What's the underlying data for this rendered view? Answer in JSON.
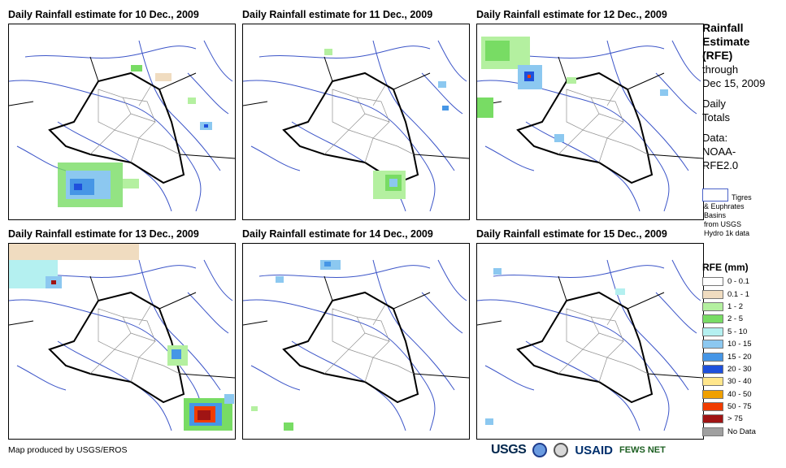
{
  "panels": [
    {
      "title": "Daily Rainfall estimate for 10 Dec., 2009"
    },
    {
      "title": "Daily Rainfall estimate for 11 Dec., 2009"
    },
    {
      "title": "Daily Rainfall estimate for 12 Dec., 2009"
    },
    {
      "title": "Daily Rainfall estimate for 13 Dec., 2009"
    },
    {
      "title": "Daily Rainfall estimate for 14 Dec., 2009"
    },
    {
      "title": "Daily Rainfall estimate for 15 Dec., 2009"
    }
  ],
  "sidebar": {
    "title_line1": "Rainfall",
    "title_line2": "Estimate",
    "title_line3": "(RFE)",
    "through": "through",
    "date": "Dec 15, 2009",
    "daily": "Daily",
    "totals": "Totals",
    "data_label": "Data:",
    "data_src1": "NOAA-",
    "data_src2": "RFE2.0"
  },
  "basins": {
    "line1": "Tigres",
    "line2": "& Euphrates",
    "line3": "Basins",
    "line4": "from USGS",
    "line5": "Hydro 1k data"
  },
  "legend": {
    "title": "RFE (mm)",
    "items": [
      {
        "label": "0 - 0.1",
        "color": "#ffffff"
      },
      {
        "label": "0.1 - 1",
        "color": "#f0dcc0"
      },
      {
        "label": "1 - 2",
        "color": "#b4f0a0"
      },
      {
        "label": "2 - 5",
        "color": "#78dc64"
      },
      {
        "label": "5 - 10",
        "color": "#b4f0f0"
      },
      {
        "label": "10 - 15",
        "color": "#8cc8f0"
      },
      {
        "label": "15 - 20",
        "color": "#4696e6"
      },
      {
        "label": "20 - 30",
        "color": "#1e50dc"
      },
      {
        "label": "30 - 40",
        "color": "#ffe68c"
      },
      {
        "label": "40 - 50",
        "color": "#f0a000"
      },
      {
        "label": "50 - 75",
        "color": "#f03c00"
      },
      {
        "label": "> 75",
        "color": "#a01414"
      },
      {
        "label": "No Data",
        "color": "#a0a0a0"
      }
    ]
  },
  "footer": {
    "credit": "Map produced by USGS/EROS"
  },
  "logos": {
    "usgs": "USGS",
    "usaid": "USAID",
    "fews": "FEWS NET"
  },
  "colors": {
    "river": "#3c55c8",
    "border": "#000000",
    "province": "#909090"
  }
}
